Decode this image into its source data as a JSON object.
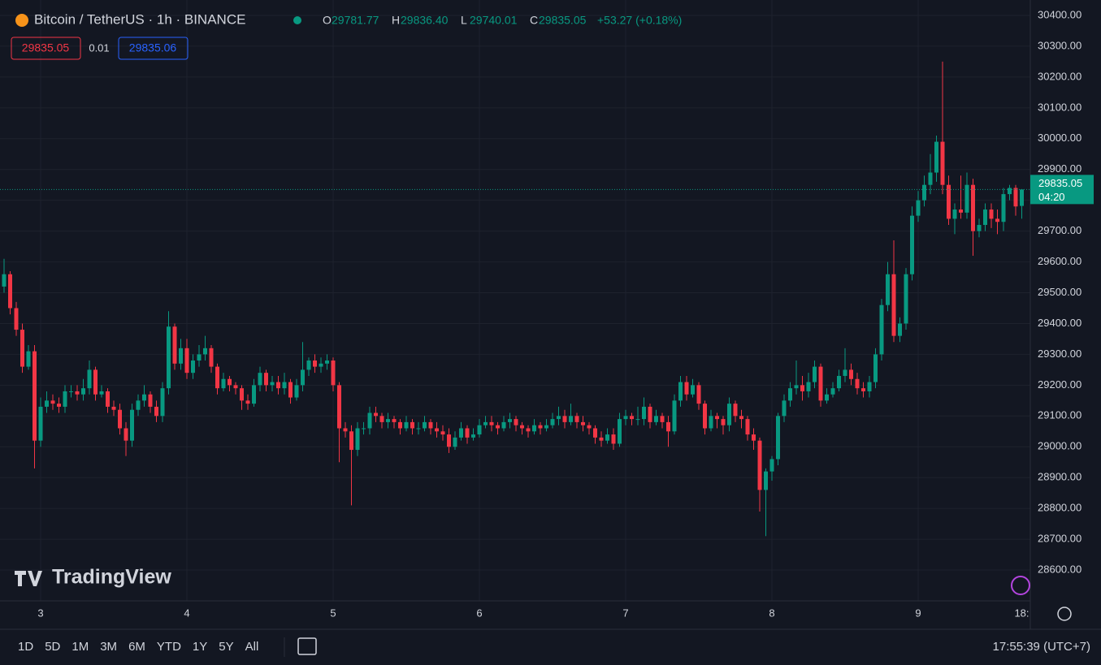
{
  "chart_data": {
    "type": "candlestick",
    "title": "Bitcoin / TetherUS · 1h · BINANCE",
    "ohlc_legend": [
      {
        "key": "O",
        "value": "29781.77"
      },
      {
        "key": "H",
        "value": "29836.40"
      },
      {
        "key": "L",
        "value": "29740.01"
      },
      {
        "key": "C",
        "value": "29835.05"
      }
    ],
    "change": "+53.27 (+0.18%)",
    "bid": "29835.05",
    "spread": "0.01",
    "ask": "29835.06",
    "countdown": "04:20",
    "watermark": "TradingView",
    "ranges": [
      "1D",
      "5D",
      "1M",
      "3M",
      "6M",
      "YTD",
      "1Y",
      "5Y",
      "All"
    ],
    "clock": "17:55:39 (UTC+7)",
    "up_color": "#089981",
    "down_color": "#f23645",
    "grid": true,
    "ylim": [
      28500,
      30450
    ],
    "yticks": [
      {
        "value": 28600,
        "label": "28600.00"
      },
      {
        "value": 28700,
        "label": "28700.00"
      },
      {
        "value": 28800,
        "label": "28800.00"
      },
      {
        "value": 28900,
        "label": "28900.00"
      },
      {
        "value": 29000,
        "label": "29000.00"
      },
      {
        "value": 29100,
        "label": "29100.00"
      },
      {
        "value": 29200,
        "label": "29200.00"
      },
      {
        "value": 29300,
        "label": "29300.00"
      },
      {
        "value": 29400,
        "label": "29400.00"
      },
      {
        "value": 29500,
        "label": "29500.00"
      },
      {
        "value": 29600,
        "label": "29600.00"
      },
      {
        "value": 29700,
        "label": "29700.00"
      },
      {
        "value": 29800,
        "label": "29800.00"
      },
      {
        "value": 29900,
        "label": "29900.00"
      },
      {
        "value": 30000,
        "label": "30000.00"
      },
      {
        "value": 30100,
        "label": "30100.00"
      },
      {
        "value": 30200,
        "label": "30200.00"
      },
      {
        "value": 30300,
        "label": "30300.00"
      },
      {
        "value": 30400,
        "label": "30400.00"
      }
    ],
    "xticks": [
      {
        "value": 6,
        "label": "3"
      },
      {
        "value": 30,
        "label": "4"
      },
      {
        "value": 54,
        "label": "5"
      },
      {
        "value": 78,
        "label": "6"
      },
      {
        "value": 102,
        "label": "7"
      },
      {
        "value": 126,
        "label": "8"
      },
      {
        "value": 150,
        "label": "9"
      },
      {
        "value": 167,
        "label": "18:"
      }
    ],
    "open": [
      29520,
      29560,
      29450,
      29380,
      29260,
      29310,
      29020,
      29130,
      29150,
      29140,
      29130,
      29180,
      29180,
      29170,
      29190,
      29250,
      29170,
      29180,
      29130,
      29120,
      29060,
      29020,
      29120,
      29150,
      29170,
      29130,
      29100,
      29190,
      29390,
      29270,
      29320,
      29240,
      29280,
      29300,
      29320,
      29260,
      29190,
      29220,
      29200,
      29190,
      29150,
      29140,
      29200,
      29240,
      29200,
      29210,
      29190,
      29210,
      29160,
      29200,
      29250,
      29280,
      29260,
      29270,
      29280,
      29200,
      29060,
      29050,
      28990,
      29060,
      29060,
      29110,
      29100,
      29080,
      29090,
      29080,
      29060,
      29080,
      29060,
      29060,
      29080,
      29060,
      29050,
      29040,
      29000,
      29030,
      29060,
      29030,
      29040,
      29070,
      29080,
      29070,
      29060,
      29080,
      29090,
      29070,
      29060,
      29050,
      29070,
      29060,
      29070,
      29090,
      29100,
      29080,
      29100,
      29080,
      29070,
      29060,
      29030,
      29020,
      29040,
      29010,
      29090,
      29100,
      29090,
      29090,
      29130,
      29080,
      29100,
      29080,
      29050,
      29150,
      29210,
      29170,
      29200,
      29140,
      29060,
      29100,
      29090,
      29070,
      29140,
      29100,
      29090,
      29040,
      29020,
      28860,
      28920,
      28960,
      29100,
      29150,
      29190,
      29200,
      29180,
      29210,
      29260,
      29150,
      29170,
      29190,
      29230,
      29250,
      29220,
      29190,
      29180,
      29210,
      29300,
      29460,
      29560,
      29360,
      29400,
      29560,
      29750,
      29800,
      29850,
      29890,
      29990,
      29850,
      29740,
      29770,
      29760,
      29850,
      29700,
      29720,
      29770,
      29740,
      29730,
      29820,
      29840,
      29781.77
    ],
    "high": [
      29610,
      29570,
      29470,
      29400,
      29330,
      29330,
      29160,
      29180,
      29170,
      29160,
      29200,
      29200,
      29200,
      29220,
      29280,
      29260,
      29200,
      29190,
      29150,
      29140,
      29080,
      29140,
      29170,
      29200,
      29180,
      29150,
      29210,
      29440,
      29400,
      29350,
      29350,
      29300,
      29330,
      29360,
      29330,
      29270,
      29240,
      29230,
      29210,
      29200,
      29170,
      29220,
      29260,
      29250,
      29230,
      29230,
      29240,
      29220,
      29220,
      29340,
      29290,
      29300,
      29290,
      29300,
      29290,
      29210,
      29080,
      29070,
      29080,
      29080,
      29130,
      29130,
      29110,
      29110,
      29100,
      29090,
      29100,
      29090,
      29080,
      29100,
      29090,
      29080,
      29070,
      29060,
      29050,
      29080,
      29070,
      29060,
      29090,
      29100,
      29100,
      29080,
      29100,
      29110,
      29100,
      29080,
      29070,
      29090,
      29080,
      29090,
      29110,
      29130,
      29120,
      29140,
      29110,
      29100,
      29080,
      29070,
      29050,
      29060,
      29060,
      29110,
      29120,
      29110,
      29130,
      29160,
      29140,
      29120,
      29110,
      29100,
      29170,
      29230,
      29230,
      29220,
      29210,
      29150,
      29120,
      29110,
      29100,
      29160,
      29150,
      29120,
      29100,
      29060,
      29030,
      28930,
      28970,
      29110,
      29170,
      29210,
      29280,
      29230,
      29240,
      29280,
      29270,
      29190,
      29210,
      29250,
      29320,
      29270,
      29240,
      29210,
      29230,
      29320,
      29480,
      29600,
      29670,
      29420,
      29580,
      29780,
      29830,
      29880,
      29950,
      30010,
      30250,
      29880,
      29790,
      29880,
      29890,
      29870,
      29740,
      29790,
      29790,
      29770,
      29840,
      29850,
      29850,
      29836.4
    ],
    "low": [
      29500,
      29430,
      29360,
      29240,
      29250,
      28930,
      29000,
      29110,
      29120,
      29110,
      29110,
      29160,
      29150,
      29150,
      29170,
      29150,
      29160,
      29110,
      29100,
      29040,
      28970,
      29000,
      29100,
      29130,
      29110,
      29080,
      29080,
      29170,
      29250,
      29250,
      29220,
      29220,
      29260,
      29280,
      29240,
      29170,
      29180,
      29180,
      29170,
      29120,
      29120,
      29130,
      29180,
      29180,
      29180,
      29170,
      29170,
      29140,
      29150,
      29180,
      29230,
      29240,
      29240,
      29250,
      29180,
      28950,
      29030,
      28810,
      28970,
      29040,
      29040,
      29080,
      29060,
      29060,
      29060,
      29040,
      29050,
      29040,
      29040,
      29050,
      29040,
      29030,
      29020,
      28980,
      28990,
      29020,
      29010,
      29020,
      29030,
      29060,
      29050,
      29040,
      29050,
      29060,
      29050,
      29040,
      29030,
      29040,
      29040,
      29050,
      29060,
      29070,
      29060,
      29070,
      29060,
      29050,
      29040,
      29010,
      29000,
      29010,
      28990,
      29000,
      29070,
      29070,
      29070,
      29070,
      29060,
      29070,
      29060,
      29000,
      29040,
      29130,
      29150,
      29160,
      29120,
      29040,
      29050,
      29060,
      29040,
      29050,
      29080,
      29060,
      29020,
      28990,
      28790,
      28710,
      28890,
      28940,
      29080,
      29130,
      29170,
      29150,
      29160,
      29190,
      29130,
      29140,
      29160,
      29180,
      29210,
      29200,
      29170,
      29160,
      29160,
      29190,
      29280,
      29440,
      29340,
      29340,
      29380,
      29540,
      29730,
      29780,
      29820,
      29860,
      29820,
      29720,
      29690,
      29740,
      29740,
      29620,
      29680,
      29700,
      29710,
      29690,
      29700,
      29800,
      29750,
      29740.01
    ],
    "close": [
      29560,
      29450,
      29380,
      29260,
      29310,
      29020,
      29130,
      29150,
      29140,
      29130,
      29180,
      29180,
      29170,
      29190,
      29250,
      29170,
      29180,
      29130,
      29120,
      29060,
      29020,
      29120,
      29150,
      29170,
      29130,
      29100,
      29190,
      29390,
      29270,
      29320,
      29240,
      29280,
      29300,
      29320,
      29260,
      29190,
      29220,
      29200,
      29190,
      29150,
      29140,
      29200,
      29240,
      29200,
      29210,
      29190,
      29210,
      29160,
      29200,
      29250,
      29280,
      29260,
      29270,
      29280,
      29200,
      29060,
      29050,
      28990,
      29060,
      29060,
      29110,
      29100,
      29080,
      29090,
      29080,
      29060,
      29080,
      29060,
      29060,
      29080,
      29060,
      29050,
      29040,
      29000,
      29030,
      29060,
      29030,
      29040,
      29070,
      29080,
      29070,
      29060,
      29080,
      29090,
      29070,
      29060,
      29050,
      29070,
      29060,
      29070,
      29090,
      29100,
      29080,
      29100,
      29080,
      29070,
      29060,
      29030,
      29020,
      29040,
      29010,
      29090,
      29100,
      29090,
      29090,
      29130,
      29080,
      29100,
      29080,
      29050,
      29150,
      29210,
      29170,
      29200,
      29140,
      29060,
      29100,
      29090,
      29070,
      29140,
      29100,
      29090,
      29040,
      29020,
      28860,
      28920,
      28960,
      29100,
      29150,
      29190,
      29200,
      29180,
      29210,
      29260,
      29150,
      29170,
      29190,
      29230,
      29250,
      29220,
      29190,
      29180,
      29210,
      29300,
      29460,
      29560,
      29360,
      29400,
      29560,
      29750,
      29800,
      29850,
      29890,
      29990,
      29850,
      29740,
      29770,
      29760,
      29850,
      29700,
      29720,
      29770,
      29740,
      29730,
      29820,
      29840,
      29780,
      29835.05
    ]
  }
}
